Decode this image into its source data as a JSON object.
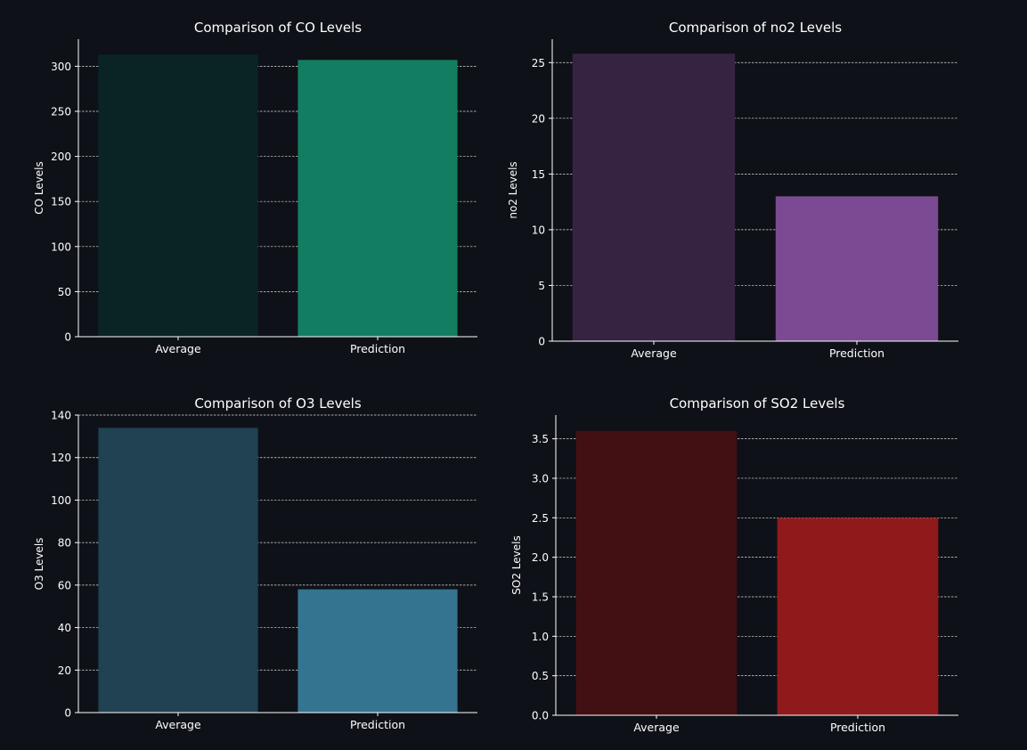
{
  "colors": {
    "background": "#0e1117",
    "text": "#ffffff"
  },
  "chart_data": [
    {
      "type": "bar",
      "title": "Comparison of CO Levels",
      "xlabel": "",
      "ylabel": "CO Levels",
      "categories": [
        "Average",
        "Prediction"
      ],
      "values": [
        313,
        307
      ],
      "colors": [
        "#0a2325",
        "#137d62"
      ],
      "ylim": [
        0,
        330
      ],
      "yticks": [
        0,
        50,
        100,
        150,
        200,
        250,
        300
      ],
      "yticks_labels": [
        "0",
        "50",
        "100",
        "150",
        "200",
        "250",
        "300"
      ],
      "grid": true
    },
    {
      "type": "bar",
      "title": "Comparison of no2 Levels",
      "xlabel": "",
      "ylabel": "no2 Levels",
      "categories": [
        "Average",
        "Prediction"
      ],
      "values": [
        25.8,
        13.0
      ],
      "colors": [
        "#362341",
        "#7b4a92"
      ],
      "ylim": [
        0,
        27.1
      ],
      "yticks": [
        0,
        5,
        10,
        15,
        20,
        25
      ],
      "yticks_labels": [
        "0",
        "5",
        "10",
        "15",
        "20",
        "25"
      ],
      "grid": true
    },
    {
      "type": "bar",
      "title": "Comparison of O3 Levels",
      "xlabel": "",
      "ylabel": "O3 Levels",
      "categories": [
        "Average",
        "Prediction"
      ],
      "values": [
        134,
        58
      ],
      "colors": [
        "#204252",
        "#347491"
      ],
      "ylim": [
        0,
        140
      ],
      "yticks": [
        0,
        20,
        40,
        60,
        80,
        100,
        120,
        140
      ],
      "yticks_labels": [
        "0",
        "20",
        "40",
        "60",
        "80",
        "100",
        "120",
        "140"
      ],
      "grid": true
    },
    {
      "type": "bar",
      "title": "Comparison of SO2 Levels",
      "xlabel": "",
      "ylabel": "SO2 Levels",
      "categories": [
        "Average",
        "Prediction"
      ],
      "values": [
        3.6,
        2.5
      ],
      "colors": [
        "#420f13",
        "#8f1a1c"
      ],
      "ylim": [
        0,
        3.8
      ],
      "yticks": [
        0,
        0.5,
        1,
        1.5,
        2,
        2.5,
        3,
        3.5
      ],
      "yticks_labels": [
        "0.0",
        "0.5",
        "1.0",
        "1.5",
        "2.0",
        "2.5",
        "3.0",
        "3.5"
      ],
      "grid": true
    }
  ]
}
